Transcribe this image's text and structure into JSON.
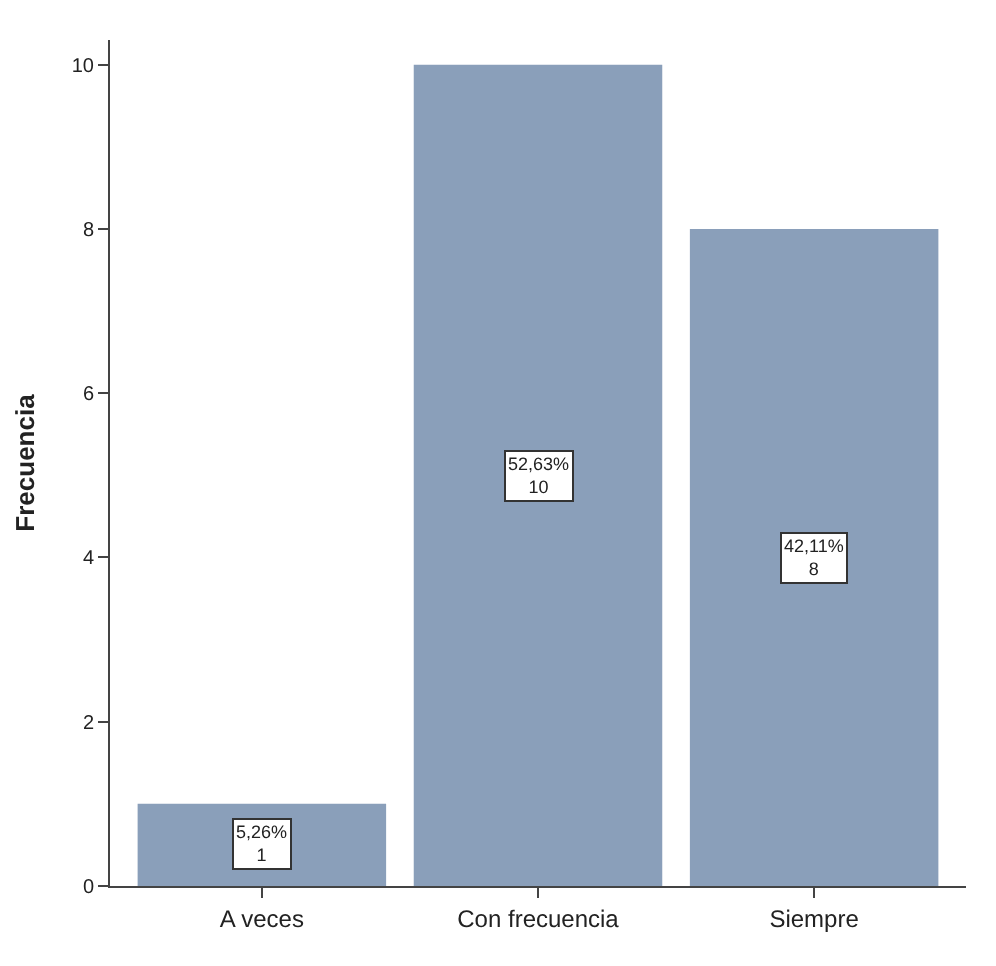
{
  "chart_data": {
    "type": "bar",
    "ylabel": "Frecuencia",
    "categories": [
      "A veces",
      "Con frecuencia",
      "Siempre"
    ],
    "values": [
      1,
      10,
      8
    ],
    "color": "#8a9fba",
    "value_labels": [
      "5,26%\n1",
      "52,63%\n10",
      "42,11%\n8"
    ],
    "ylim": [
      0,
      10.3
    ],
    "yticks": [
      0,
      2,
      4,
      6,
      8,
      10
    ],
    "legend": false
  }
}
